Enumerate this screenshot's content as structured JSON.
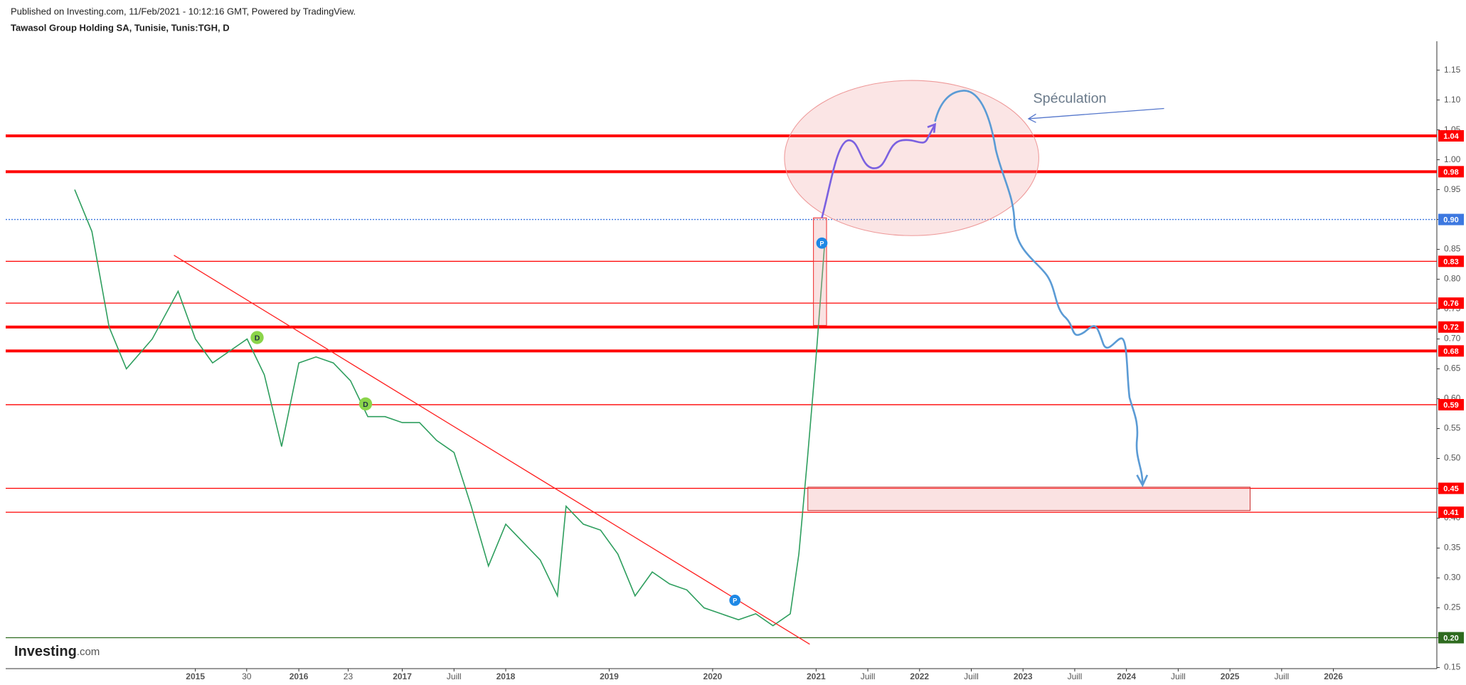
{
  "chart_data": {
    "type": "line",
    "published": "Published on Investing.com, 11/Feb/2021 - 10:12:16 GMT, Powered by TradingView.",
    "title": "Tawasol Group Holding SA, Tunisie, Tunis:TGH, D",
    "logo": "Investing",
    "logo_suffix": ".com",
    "annotation": "Spéculation",
    "markers": [
      {
        "label": "D"
      },
      {
        "label": "D"
      },
      {
        "label": "P"
      },
      {
        "label": "P"
      }
    ],
    "xlim": [
      "2013-03",
      "2027-01"
    ],
    "xticks": [
      {
        "value": "2015-01",
        "label": "2015"
      },
      {
        "value": "2015-06-30",
        "label": "30"
      },
      {
        "value": "2016-01",
        "label": "2016"
      },
      {
        "value": "2016-06-23",
        "label": "23"
      },
      {
        "value": "2017-01",
        "label": "2017"
      },
      {
        "value": "2017-07",
        "label": "Juill"
      },
      {
        "value": "2018-01",
        "label": "2018"
      },
      {
        "value": "2019-01",
        "label": "2019"
      },
      {
        "value": "2020-01",
        "label": "2020"
      },
      {
        "value": "2021-01",
        "label": "2021"
      },
      {
        "value": "2021-07",
        "label": "Juill"
      },
      {
        "value": "2022-01",
        "label": "2022"
      },
      {
        "value": "2022-07",
        "label": "Juill"
      },
      {
        "value": "2023-01",
        "label": "2023"
      },
      {
        "value": "2023-07",
        "label": "Juill"
      },
      {
        "value": "2024-01",
        "label": "2024"
      },
      {
        "value": "2024-07",
        "label": "Juill"
      },
      {
        "value": "2025-01",
        "label": "2025"
      },
      {
        "value": "2025-07",
        "label": "Juill"
      },
      {
        "value": "2026-01",
        "label": "2026"
      }
    ],
    "ylim": [
      0.15,
      1.15
    ],
    "yticks": [
      1.15,
      {
        "value": 1.1,
        "label": "1.10"
      },
      1.05,
      {
        "value": 1.0,
        "label": "1.00"
      },
      0.95,
      {
        "value": 0.9,
        "label": "0.90"
      },
      0.85,
      {
        "value": 0.8,
        "label": "0.80"
      },
      0.75,
      {
        "value": 0.7,
        "label": "0.70"
      },
      0.65,
      {
        "value": 0.6,
        "label": "0.60"
      },
      0.55,
      {
        "value": 0.5,
        "label": "0.50"
      },
      0.45,
      {
        "value": 0.4,
        "label": "0.40"
      },
      0.35,
      {
        "value": 0.3,
        "label": "0.30"
      },
      0.25,
      {
        "value": 0.2,
        "label": "0.20"
      },
      0.15
    ],
    "levels": [
      {
        "value": 1.04,
        "color": "#ff0000",
        "style": "thick"
      },
      {
        "value": 0.98,
        "color": "#ff0000",
        "style": "thick"
      },
      {
        "value": 0.9,
        "label": "0.90",
        "color": "#3d78e0",
        "style": "dotted"
      },
      {
        "value": 0.83,
        "color": "#ff0000",
        "style": "thin"
      },
      {
        "value": 0.76,
        "color": "#ff0000",
        "style": "thin"
      },
      {
        "value": 0.72,
        "color": "#ff0000",
        "style": "thick"
      },
      {
        "value": 0.68,
        "color": "#ff0000",
        "style": "thick"
      },
      {
        "value": 0.59,
        "color": "#ff0000",
        "style": "thin"
      },
      {
        "value": 0.45,
        "color": "#ff0000",
        "style": "thin"
      },
      {
        "value": 0.41,
        "color": "#ff0000",
        "style": "thin"
      },
      {
        "value": 0.2,
        "label": "0.20",
        "color": "#2e6b1f",
        "style": "thin"
      }
    ],
    "x": [
      "2013-11",
      "2014-01",
      "2014-03",
      "2014-05",
      "2014-08",
      "2014-11",
      "2015-01",
      "2015-03",
      "2015-05",
      "2015-07",
      "2015-09",
      "2015-11",
      "2016-01",
      "2016-03",
      "2016-05",
      "2016-07",
      "2016-09",
      "2016-11",
      "2017-01",
      "2017-03",
      "2017-05",
      "2017-07",
      "2017-09",
      "2017-11",
      "2018-01",
      "2018-03",
      "2018-05",
      "2018-07",
      "2018-08",
      "2018-10",
      "2018-12",
      "2019-02",
      "2019-04",
      "2019-06",
      "2019-08",
      "2019-10",
      "2019-12",
      "2020-02",
      "2020-04",
      "2020-06",
      "2020-08",
      "2020-10",
      "2020-11",
      "2020-12",
      "2021-01",
      "2021-02"
    ],
    "series": [
      {
        "name": "TGH",
        "color": "#2e9e5e",
        "values": [
          0.95,
          0.88,
          0.72,
          0.65,
          0.7,
          0.78,
          0.7,
          0.66,
          0.68,
          0.7,
          0.64,
          0.52,
          0.66,
          0.67,
          0.66,
          0.63,
          0.57,
          0.57,
          0.56,
          0.56,
          0.53,
          0.51,
          0.42,
          0.32,
          0.39,
          0.36,
          0.33,
          0.27,
          0.42,
          0.39,
          0.38,
          0.34,
          0.27,
          0.31,
          0.29,
          0.28,
          0.25,
          0.24,
          0.23,
          0.24,
          0.22,
          0.24,
          0.34,
          0.5,
          0.67,
          0.86
        ]
      }
    ]
  }
}
